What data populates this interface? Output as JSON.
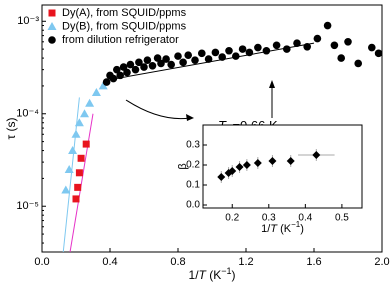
{
  "chart_data": [
    {
      "type": "scatter",
      "yscale": "log",
      "legend": "upper left",
      "xlim": [
        0,
        2
      ],
      "ylim": [
        3.2e-06,
        0.0015
      ],
      "xticks": [
        {
          "value": 0,
          "label": "0.0"
        },
        0.4,
        0.8,
        1.2,
        1.6,
        {
          "value": 2,
          "label": "2.0"
        }
      ],
      "yticks": [
        {
          "value": 1e-05,
          "label": "10⁻⁵"
        },
        {
          "value": 0.0001,
          "label": "10⁻⁴"
        },
        {
          "value": 0.001,
          "label": "10⁻³"
        }
      ],
      "ylabel": "τ (s)",
      "xlabel_parts": [
        "1/",
        "T",
        " (K",
        "−1",
        ")"
      ],
      "annotation_parts": [
        "T",
        "N",
        "=0.66 K"
      ],
      "series": [
        {
          "name": "Dy(A), from SQUID/ppms",
          "color": "#e8141e",
          "marker": "square",
          "x": [
            0.26,
            0.23,
            0.22,
            0.21,
            0.2
          ],
          "values": [
            4.7e-05,
            3.3e-05,
            2.3e-05,
            1.6e-05,
            1.2e-05
          ]
        },
        {
          "name": "Dy(B), from SQUID/ppms",
          "color": "#7ec8f0",
          "marker": "triangle",
          "x": [
            0.14,
            0.16,
            0.18,
            0.2,
            0.22,
            0.25,
            0.28,
            0.32,
            0.36
          ],
          "values": [
            1.5e-05,
            2.5e-05,
            4e-05,
            6e-05,
            8e-05,
            0.0001,
            0.00013,
            0.00017,
            0.0002
          ]
        },
        {
          "name": "from dilution refrigerator",
          "color": "#000000",
          "marker": "circle",
          "x": [
            0.38,
            0.4,
            0.42,
            0.44,
            0.46,
            0.48,
            0.5,
            0.52,
            0.55,
            0.57,
            0.6,
            0.62,
            0.65,
            0.68,
            0.7,
            0.73,
            0.76,
            0.8,
            0.83,
            0.86,
            0.9,
            0.94,
            0.98,
            1.02,
            1.06,
            1.1,
            1.14,
            1.18,
            1.22,
            1.27,
            1.32,
            1.38,
            1.44,
            1.5,
            1.56,
            1.62,
            1.68,
            1.72,
            1.76,
            1.8,
            1.86,
            1.94,
            1.98
          ],
          "values": [
            0.00022,
            0.00026,
            0.00024,
            0.0003,
            0.00026,
            0.00032,
            0.00028,
            0.00034,
            0.0003,
            0.00036,
            0.00032,
            0.00038,
            0.00033,
            0.0004,
            0.00035,
            0.00039,
            0.00034,
            0.00042,
            0.00036,
            0.00043,
            0.00038,
            0.00045,
            0.00039,
            0.00046,
            0.00041,
            0.00048,
            0.00042,
            0.0005,
            0.00046,
            0.00052,
            0.00048,
            0.00055,
            0.0005,
            0.00058,
            0.00053,
            0.00065,
            0.0009,
            0.00055,
            0.0004,
            0.0006,
            0.00035,
            0.00052,
            0.00045
          ]
        }
      ],
      "fits": [
        {
          "color": "#e633c8",
          "x": [
            0.165,
            0.3
          ],
          "values": [
            3.2e-06,
            0.0001
          ]
        },
        {
          "color": "#7ec8f0",
          "x": [
            0.125,
            0.22
          ],
          "values": [
            3.2e-06,
            0.00015
          ]
        },
        {
          "color": "#000000",
          "x": [
            0.38,
            1.6
          ],
          "values": [
            0.00023,
            0.00058
          ]
        }
      ]
    },
    {
      "type": "errorbar",
      "xlim": [
        0.12,
        0.555
      ],
      "ylim": [
        -0.015,
        0.4
      ],
      "xticks": [
        0.2,
        0.3,
        0.4,
        0.5
      ],
      "yticks": [
        {
          "value": 0,
          "label": "0.0"
        },
        0.1,
        0.2,
        0.3
      ],
      "ylabel": "β",
      "xlabel_parts": [
        "1/",
        "T",
        " (K",
        "−1",
        ")"
      ],
      "color": "#000000",
      "x": [
        0.17,
        0.19,
        0.2,
        0.22,
        0.24,
        0.27,
        0.31,
        0.36,
        0.43
      ],
      "values": [
        0.14,
        0.16,
        0.17,
        0.19,
        0.2,
        0.21,
        0.22,
        0.22,
        0.25
      ],
      "yerr": [
        0.03,
        0.03,
        0.03,
        0.03,
        0.03,
        0.03,
        0.03,
        0.03,
        0.03
      ],
      "xerr": [
        null,
        null,
        null,
        null,
        null,
        null,
        null,
        null,
        0.05
      ]
    }
  ]
}
